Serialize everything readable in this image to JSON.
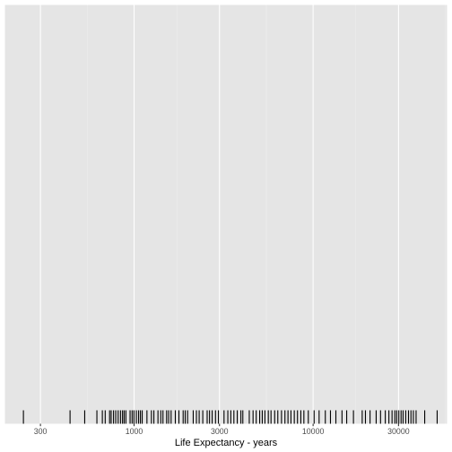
{
  "chart_data": {
    "type": "rug",
    "title": "",
    "xlabel": "Life Expectancy - years",
    "ylabel": "",
    "xscale": "log10",
    "xlim": [
      190,
      56000
    ],
    "x_ticks": [
      300,
      1000,
      3000,
      10000,
      30000
    ],
    "x_tick_labels": [
      "300",
      "1000",
      "3000",
      "10000",
      "30000"
    ],
    "grid": true,
    "legend": "none",
    "colors": {
      "panel": "#e5e5e5",
      "grid_major": "#ffffff",
      "grid_minor": "#f0f0f0",
      "mark": "#000000"
    },
    "x": [
      241,
      439,
      530,
      620,
      665,
      690,
      730,
      745,
      768,
      790,
      815,
      840,
      862,
      880,
      900,
      950,
      975,
      998,
      1030,
      1060,
      1085,
      1110,
      1180,
      1250,
      1290,
      1360,
      1410,
      1450,
      1520,
      1560,
      1610,
      1700,
      1780,
      1880,
      1930,
      1990,
      2140,
      2230,
      2310,
      2420,
      2560,
      2640,
      2730,
      2850,
      2960,
      3180,
      3340,
      3470,
      3610,
      3770,
      3950,
      4050,
      4400,
      4620,
      4810,
      5030,
      5200,
      5380,
      5620,
      5820,
      6100,
      6350,
      6660,
      6960,
      7240,
      7520,
      7850,
      8180,
      8540,
      8880,
      9400,
      10130,
      10800,
      11700,
      12500,
      13400,
      14500,
      15400,
      16800,
      18800,
      19600,
      20800,
      22500,
      23800,
      25300,
      26500,
      27600,
      28600,
      29300,
      30100,
      31000,
      31800,
      32900,
      34100,
      35200,
      36300,
      37600,
      42000,
      49300
    ]
  }
}
